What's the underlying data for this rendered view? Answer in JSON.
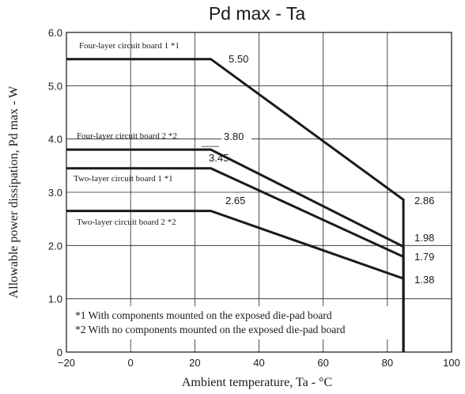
{
  "chart_data": {
    "type": "line",
    "title": "Pd max  -  Ta",
    "xlabel": "Ambient temperature, Ta  - °C",
    "ylabel": "Allowable power dissipation, Pd max  -  W",
    "xlim": [
      -20,
      100
    ],
    "ylim": [
      0,
      6.0
    ],
    "x_ticks": [
      "−20",
      "0",
      "20",
      "40",
      "60",
      "80",
      "100"
    ],
    "y_ticks": [
      "0",
      "1.0",
      "2.0",
      "3.0",
      "4.0",
      "5.0",
      "6.0"
    ],
    "grid": true,
    "series": [
      {
        "name": "Four-layer circuit board 1 *1",
        "points": [
          [
            -20,
            5.5
          ],
          [
            25,
            5.5
          ],
          [
            85,
            2.86
          ],
          [
            85,
            0
          ]
        ],
        "labels": [
          "5.50",
          "2.86"
        ]
      },
      {
        "name": "Four-layer circuit board 2 *2",
        "points": [
          [
            -20,
            3.8
          ],
          [
            25,
            3.8
          ],
          [
            85,
            1.98
          ],
          [
            85,
            0
          ]
        ],
        "labels": [
          "3.80",
          "1.98"
        ]
      },
      {
        "name": "Two-layer circuit board 1 *1",
        "points": [
          [
            -20,
            3.45
          ],
          [
            25,
            3.45
          ],
          [
            85,
            1.79
          ],
          [
            85,
            0
          ]
        ],
        "labels": [
          "3.45",
          "1.79"
        ]
      },
      {
        "name": "Two-layer circuit board 2 *2",
        "points": [
          [
            -20,
            2.65
          ],
          [
            25,
            2.65
          ],
          [
            85,
            1.38
          ],
          [
            85,
            0
          ]
        ],
        "labels": [
          "2.65",
          "1.38"
        ]
      }
    ],
    "notes": [
      "*1 With components mounted on the exposed die-pad board",
      "*2 With no components mounted on the exposed die-pad board"
    ]
  }
}
